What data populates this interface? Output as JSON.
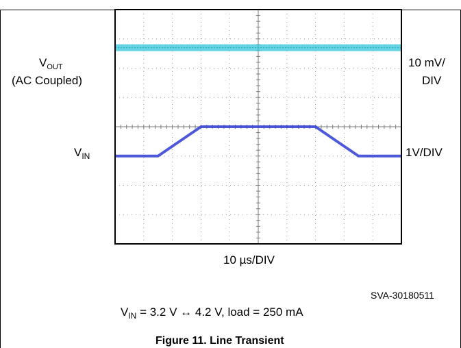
{
  "chart_data": {
    "type": "line",
    "xlabel": "10 µs/DIV",
    "grid": true,
    "x_divisions": 10,
    "y_divisions": 8,
    "series": [
      {
        "name": "VOUT",
        "units_per_div": "10 mV/DIV",
        "coupling": "AC Coupled",
        "x_div": [
          0,
          10
        ],
        "y_div": [
          1.3,
          1.3
        ],
        "color": "#33c4d9"
      },
      {
        "name": "VIN",
        "units_per_div": "1V/DIV",
        "x_div": [
          0,
          1.5,
          3.0,
          7.0,
          8.5,
          10
        ],
        "y_div": [
          5.0,
          5.0,
          4.0,
          4.0,
          5.0,
          5.0
        ],
        "color": "#3b46d6"
      }
    ],
    "conditions": "VIN = 3.2 V ↔ 4.2 V, load = 250 mA",
    "reference": "SVA-30180511",
    "figure_title": "Figure 11. Line Transient"
  },
  "labels": {
    "vout_main": "V",
    "vout_sub": "OUT",
    "vout_coupling": "(AC Coupled)",
    "vout_scale_line1": "10 mV/",
    "vout_scale_line2": "DIV",
    "vin_main": "V",
    "vin_sub": "IN",
    "vin_scale": "1V/DIV",
    "time_scale": "10 µs/DIV",
    "ref_code": "SVA-30180511",
    "cond_v": "V",
    "cond_sub": "IN",
    "cond_rest": " = 3.2 V ↔ 4.2 V, load = 250 mA",
    "figure_title": "Figure 11. Line Transient"
  },
  "colors": {
    "vout_trace": "#33c4d9",
    "vin_trace": "#3b46d6",
    "grid": "#9a9a9a",
    "frame": "#000000"
  }
}
